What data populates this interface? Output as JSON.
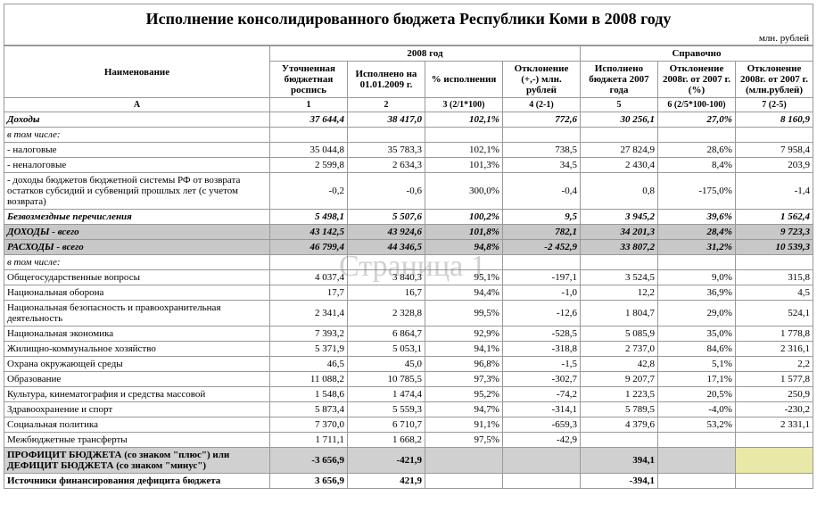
{
  "title": "Исполнение консолидированного бюджета Республики Коми в 2008 году",
  "unit": "млн. рублей",
  "watermark": "Страница 1",
  "headers": {
    "name": "Наименование",
    "group2008": "2008 год",
    "groupRef": "Справочно",
    "c1": "Уточненная бюджетная роспись",
    "c2": "Исполнено на 01.01.2009 г.",
    "c3": "% исполнения",
    "c4": "Отклонение (+,-) млн. рублей",
    "c5": "Исполнено бюджета 2007 года",
    "c6": "Отклонение 2008г. от 2007 г. (%)",
    "c7": "Отклонение 2008г. от 2007 г. (млн.рублей)",
    "rA": "А",
    "r1": "1",
    "r2": "2",
    "r3": "3 (2/1*100)",
    "r4": "4 (2-1)",
    "r5": "5",
    "r6": "6 (2/5*100-100)",
    "r7": "7 (2-5)"
  },
  "rows": [
    {
      "cls": "bolditalic",
      "name": "Доходы",
      "v": [
        "37 644,4",
        "38 417,0",
        "102,1%",
        "772,6",
        "30 256,1",
        "27,0%",
        "8 160,9"
      ]
    },
    {
      "cls": "italic",
      "name": "в том числе:",
      "v": [
        "",
        "",
        "",
        "",
        "",
        "",
        ""
      ]
    },
    {
      "cls": "",
      "name": "- налоговые",
      "v": [
        "35 044,8",
        "35 783,3",
        "102,1%",
        "738,5",
        "27 824,9",
        "28,6%",
        "7 958,4"
      ]
    },
    {
      "cls": "",
      "name": "- неналоговые",
      "v": [
        "2 599,8",
        "2 634,3",
        "101,3%",
        "34,5",
        "2 430,4",
        "8,4%",
        "203,9"
      ]
    },
    {
      "cls": "",
      "name": "- доходы бюджетов бюджетной системы РФ от возврата остатков субсидий и субвенций прошлых лет (с учетом возврата)",
      "v": [
        "-0,2",
        "-0,6",
        "300,0%",
        "-0,4",
        "0,8",
        "-175,0%",
        "-1,4"
      ]
    },
    {
      "cls": "bolditalic",
      "name": "Безвозмездные перечисления",
      "v": [
        "5 498,1",
        "5 507,6",
        "100,2%",
        "9,5",
        "3 945,2",
        "39,6%",
        "1 562,4"
      ]
    },
    {
      "cls": "bolditalic gray",
      "name": "ДОХОДЫ - всего",
      "v": [
        "43 142,5",
        "43 924,6",
        "101,8%",
        "782,1",
        "34 201,3",
        "28,4%",
        "9 723,3"
      ]
    },
    {
      "cls": "bolditalic gray",
      "name": "РАСХОДЫ - всего",
      "v": [
        "46 799,4",
        "44 346,5",
        "94,8%",
        "-2 452,9",
        "33 807,2",
        "31,2%",
        "10 539,3"
      ]
    },
    {
      "cls": "italic",
      "name": "в том числе:",
      "v": [
        "",
        "",
        "",
        "",
        "",
        "",
        ""
      ]
    },
    {
      "cls": "",
      "name": "Общегосударственные вопросы",
      "v": [
        "4 037,4",
        "3 840,3",
        "95,1%",
        "-197,1",
        "3 524,5",
        "9,0%",
        "315,8"
      ]
    },
    {
      "cls": "",
      "name": "Национальная оборона",
      "v": [
        "17,7",
        "16,7",
        "94,4%",
        "-1,0",
        "12,2",
        "36,9%",
        "4,5"
      ]
    },
    {
      "cls": "",
      "name": "Национальная безопасность и правоохранительная деятельность",
      "v": [
        "2 341,4",
        "2 328,8",
        "99,5%",
        "-12,6",
        "1 804,7",
        "29,0%",
        "524,1"
      ]
    },
    {
      "cls": "",
      "name": "Национальная экономика",
      "v": [
        "7 393,2",
        "6 864,7",
        "92,9%",
        "-528,5",
        "5 085,9",
        "35,0%",
        "1 778,8"
      ]
    },
    {
      "cls": "",
      "name": "Жилищно-коммунальное хозяйство",
      "v": [
        "5 371,9",
        "5 053,1",
        "94,1%",
        "-318,8",
        "2 737,0",
        "84,6%",
        "2 316,1"
      ]
    },
    {
      "cls": "",
      "name": "Охрана окружающей среды",
      "v": [
        "46,5",
        "45,0",
        "96,8%",
        "-1,5",
        "42,8",
        "5,1%",
        "2,2"
      ]
    },
    {
      "cls": "",
      "name": "Образование",
      "v": [
        "11 088,2",
        "10 785,5",
        "97,3%",
        "-302,7",
        "9 207,7",
        "17,1%",
        "1 577,8"
      ]
    },
    {
      "cls": "",
      "name": "Культура, кинематография и средства массовой",
      "v": [
        "1 548,6",
        "1 474,4",
        "95,2%",
        "-74,2",
        "1 223,5",
        "20,5%",
        "250,9"
      ]
    },
    {
      "cls": "",
      "name": "Здравоохранение и спорт",
      "v": [
        "5 873,4",
        "5 559,3",
        "94,7%",
        "-314,1",
        "5 789,5",
        "-4,0%",
        "-230,2"
      ]
    },
    {
      "cls": "",
      "name": "Социальная политика",
      "v": [
        "7 370,0",
        "6 710,7",
        "91,1%",
        "-659,3",
        "4 379,6",
        "53,2%",
        "2 331,1"
      ]
    },
    {
      "cls": "",
      "name": "Межбюджетные трансферты",
      "v": [
        "1 711,1",
        "1 668,2",
        "97,5%",
        "-42,9",
        "",
        "",
        ""
      ]
    },
    {
      "cls": "bold gray2 yellow",
      "name": "ПРОФИЦИТ БЮДЖЕТА (со знаком \"плюс\") или ДЕФИЦИТ БЮДЖЕТА (со знаком \"минус\")",
      "v": [
        "-3 656,9",
        "-421,9",
        "",
        "",
        "394,1",
        "",
        ""
      ]
    },
    {
      "cls": "bold",
      "name": "Источники финансирования дефицита бюджета",
      "v": [
        "3 656,9",
        "421,9",
        "",
        "",
        "-394,1",
        "",
        ""
      ]
    }
  ]
}
